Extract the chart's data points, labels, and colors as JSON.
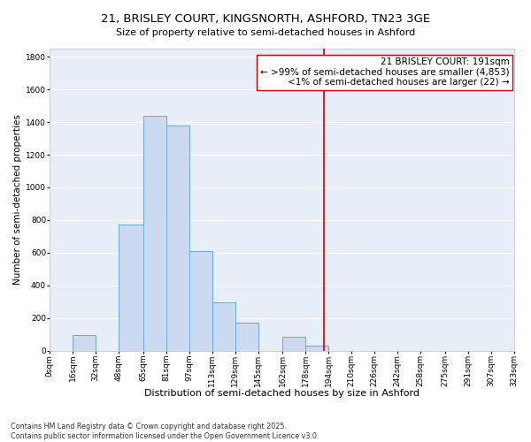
{
  "title": "21, BRISLEY COURT, KINGSNORTH, ASHFORD, TN23 3GE",
  "subtitle": "Size of property relative to semi-detached houses in Ashford",
  "xlabel": "Distribution of semi-detached houses by size in Ashford",
  "ylabel": "Number of semi-detached properties",
  "bin_edges": [
    0,
    16,
    32,
    48,
    65,
    81,
    97,
    113,
    129,
    145,
    162,
    178,
    194,
    210,
    226,
    242,
    258,
    275,
    291,
    307,
    323
  ],
  "bin_labels": [
    "0sqm",
    "16sqm",
    "32sqm",
    "48sqm",
    "65sqm",
    "81sqm",
    "97sqm",
    "113sqm",
    "129sqm",
    "145sqm",
    "162sqm",
    "178sqm",
    "194sqm",
    "210sqm",
    "226sqm",
    "242sqm",
    "258sqm",
    "275sqm",
    "291sqm",
    "307sqm",
    "323sqm"
  ],
  "counts": [
    0,
    95,
    0,
    770,
    1440,
    1380,
    610,
    295,
    170,
    0,
    85,
    30,
    0,
    0,
    0,
    0,
    0,
    0,
    0,
    0
  ],
  "bar_facecolor": "#ccdaf0",
  "bar_edgecolor": "#6baad8",
  "background_color": "#e8eef8",
  "grid_color": "#ffffff",
  "vline_x": 191,
  "vline_color": "#cc0000",
  "annotation_text": "21 BRISLEY COURT: 191sqm\n← >99% of semi-detached houses are smaller (4,853)\n<1% of semi-detached houses are larger (22) →",
  "ylim": [
    0,
    1850
  ],
  "yticks": [
    0,
    200,
    400,
    600,
    800,
    1000,
    1200,
    1400,
    1600,
    1800
  ],
  "footnote1": "Contains HM Land Registry data © Crown copyright and database right 2025.",
  "footnote2": "Contains public sector information licensed under the Open Government Licence v3.0.",
  "title_fontsize": 9.5,
  "subtitle_fontsize": 8,
  "xlabel_fontsize": 8,
  "ylabel_fontsize": 7.5,
  "tick_fontsize": 6.5,
  "annotation_fontsize": 7.5,
  "footnote_fontsize": 5.8
}
